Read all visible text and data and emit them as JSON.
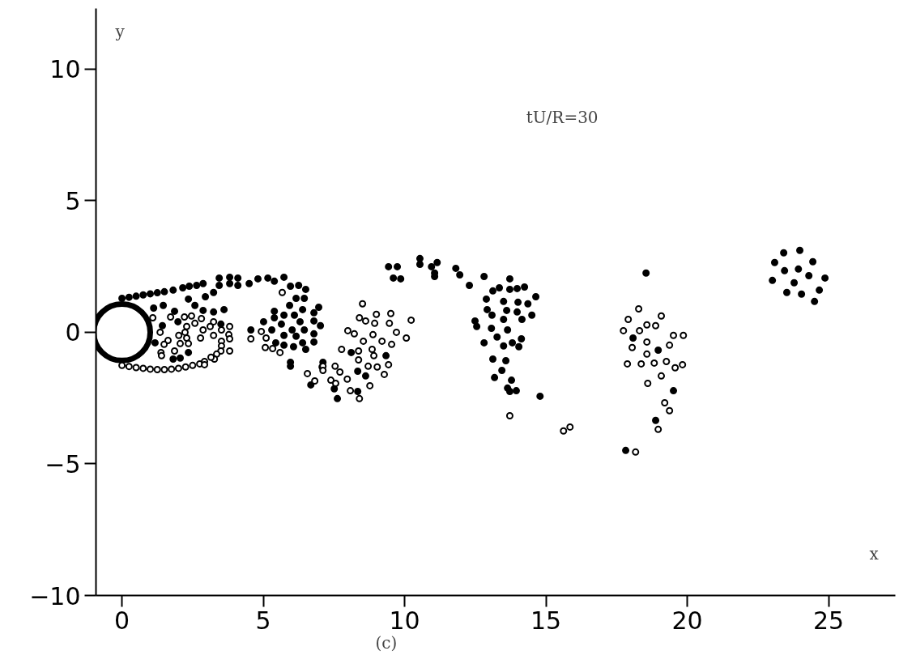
{
  "chart_data": {
    "type": "scatter",
    "xlabel": "x",
    "ylabel": "y",
    "annotations": [
      "tU/R=30",
      "(c)"
    ],
    "xlim": [
      -0.92,
      27.36
    ],
    "ylim": [
      -10,
      12.3
    ],
    "xticks": [
      0,
      5,
      10,
      15,
      20,
      25
    ],
    "yticks": [
      {
        "value": -10,
        "label": "−10"
      },
      {
        "value": -5,
        "label": "−5"
      },
      0,
      5,
      10
    ],
    "grid": false,
    "marker": "circle",
    "series": [
      {
        "color": "#000000",
        "x": [
          0.0,
          0.25,
          0.5,
          0.75,
          1.0,
          1.25,
          1.5,
          1.81,
          2.15,
          2.38,
          2.64,
          2.87,
          3.44,
          3.44,
          3.81,
          3.81,
          4.1,
          4.1,
          4.5,
          4.81,
          5.16,
          5.39,
          5.73,
          5.96,
          6.25,
          6.5,
          6.45,
          6.16,
          5.93,
          6.96,
          5.39,
          6.39,
          6.79,
          5.73,
          6.1,
          5.39,
          5.01,
          5.64,
          6.3,
          6.79,
          7.02,
          4.56,
          5.3,
          6.02,
          6.45,
          5.73,
          6.16,
          6.79,
          5.44,
          5.73,
          6.07,
          6.39,
          6.5,
          6.79,
          5.96,
          5.96,
          7.11,
          6.68,
          1.12,
          1.46,
          1.86,
          2.35,
          2.95,
          3.24,
          2.58,
          2.87,
          3.24,
          3.61,
          1.98,
          1.43,
          1.17,
          3.5,
          2.35,
          1.81,
          2.06,
          8.11,
          8.34,
          8.62,
          9.34,
          8.34,
          7.51,
          7.62,
          9.43,
          9.74,
          9.6,
          9.86,
          10.54,
          10.54,
          10.95,
          11.15,
          11.06,
          11.06,
          11.81,
          11.95,
          12.29,
          12.49,
          12.55,
          12.81,
          13.72,
          13.12,
          13.35,
          13.72,
          13.98,
          14.24,
          14.64,
          12.89,
          13.5,
          14.01,
          14.36,
          12.92,
          13.61,
          13.98,
          13.09,
          13.5,
          14.15,
          14.5,
          13.07,
          13.64,
          13.27,
          14.13,
          12.81,
          13.81,
          13.5,
          14.04,
          13.12,
          13.58,
          13.44,
          13.18,
          13.78,
          13.64,
          13.72,
          13.95,
          14.79,
          18.54,
          18.08,
          18.97,
          19.51,
          18.88,
          17.82,
          23.41,
          23.98,
          23.09,
          24.44,
          23.44,
          23.93,
          24.3,
          24.87,
          23.01,
          23.78,
          23.52,
          24.04,
          24.67,
          24.5
        ],
        "values": [
          1.29,
          1.33,
          1.37,
          1.42,
          1.46,
          1.5,
          1.54,
          1.6,
          1.69,
          1.75,
          1.78,
          1.85,
          2.06,
          1.78,
          2.09,
          1.85,
          2.06,
          1.78,
          1.85,
          2.03,
          2.06,
          1.94,
          2.09,
          1.75,
          1.78,
          1.63,
          1.29,
          1.29,
          1.02,
          0.95,
          0.8,
          0.86,
          0.74,
          0.65,
          0.65,
          0.55,
          0.4,
          0.31,
          0.4,
          0.43,
          0.25,
          0.09,
          0.09,
          0.09,
          0.09,
          -0.12,
          -0.15,
          -0.06,
          -0.4,
          -0.49,
          -0.55,
          -0.4,
          -0.65,
          -0.37,
          -1.14,
          -1.29,
          -1.14,
          -2.0,
          0.92,
          1.02,
          0.8,
          1.26,
          1.35,
          1.51,
          1.02,
          0.83,
          0.77,
          0.86,
          0.4,
          0.25,
          -0.4,
          0.31,
          -0.77,
          -1.02,
          -0.98,
          -0.77,
          -1.48,
          -1.66,
          -0.89,
          -2.25,
          -2.15,
          -2.52,
          2.49,
          2.49,
          2.06,
          2.03,
          2.8,
          2.58,
          2.49,
          2.65,
          2.25,
          2.12,
          2.43,
          2.18,
          1.78,
          0.43,
          0.22,
          2.12,
          2.03,
          1.57,
          1.69,
          1.63,
          1.66,
          1.72,
          1.35,
          1.26,
          1.17,
          1.14,
          1.08,
          0.86,
          0.83,
          0.77,
          0.65,
          0.49,
          0.49,
          0.65,
          0.15,
          0.09,
          -0.18,
          -0.25,
          -0.4,
          -0.4,
          -0.52,
          -0.55,
          -1.02,
          -1.08,
          -1.45,
          -1.72,
          -1.82,
          -2.12,
          -2.25,
          -2.22,
          -2.43,
          2.25,
          -0.22,
          -0.68,
          -2.22,
          -3.35,
          -4.49,
          3.02,
          3.11,
          2.65,
          2.68,
          2.34,
          2.4,
          2.15,
          2.06,
          1.97,
          1.88,
          1.51,
          1.45,
          1.6,
          1.17
        ]
      },
      {
        "color": "#000000",
        "x": [
          0.0,
          0.25,
          0.5,
          0.75,
          1.0,
          1.25,
          1.5,
          1.75,
          2.0,
          2.25,
          2.5,
          2.75,
          1.09,
          1.72,
          2.21,
          2.46,
          2.81,
          3.24,
          2.58,
          3.12,
          3.52,
          3.81,
          2.29,
          1.35,
          2.87,
          2.23,
          2.01,
          2.29,
          2.78,
          3.24,
          3.78,
          3.81,
          3.52,
          1.63,
          1.49,
          2.06,
          2.35,
          1.86,
          1.38,
          1.4,
          3.52,
          3.5,
          3.81,
          3.35,
          3.27,
          3.15,
          2.92,
          2.92,
          5.67,
          4.56,
          4.93,
          5.1,
          5.07,
          5.33,
          5.59,
          6.56,
          6.82,
          7.08,
          7.11,
          7.11,
          8.51,
          8.4,
          8.62,
          9.0,
          8.94,
          9.51,
          9.46,
          10.23,
          7.99,
          8.22,
          8.54,
          8.88,
          9.2,
          9.71,
          10.06,
          9.54,
          7.77,
          8.37,
          8.85,
          8.91,
          8.37,
          8.71,
          9.03,
          9.43,
          9.28,
          7.71,
          7.97,
          7.56,
          7.39,
          8.08,
          8.77,
          8.4,
          7.54,
          13.72,
          15.85,
          15.62,
          18.28,
          17.91,
          19.08,
          18.57,
          18.88,
          17.74,
          18.31,
          19.51,
          19.86,
          18.57,
          18.05,
          19.37,
          18.57,
          17.88,
          18.37,
          18.83,
          19.26,
          19.57,
          19.83,
          19.08,
          18.6,
          19.2,
          19.37,
          18.97,
          18.17
        ],
        "values": [
          -1.26,
          -1.3,
          -1.34,
          -1.37,
          -1.4,
          -1.42,
          -1.42,
          -1.4,
          -1.37,
          -1.32,
          -1.26,
          -1.2,
          0.55,
          0.58,
          0.58,
          0.62,
          0.52,
          0.4,
          0.34,
          0.22,
          0.09,
          0.22,
          0.22,
          0.0,
          0.09,
          0.0,
          -0.12,
          -0.22,
          -0.22,
          -0.12,
          -0.09,
          -0.25,
          -0.34,
          -0.31,
          -0.46,
          -0.43,
          -0.43,
          -0.71,
          -0.77,
          -0.89,
          -0.52,
          -0.71,
          -0.71,
          -0.83,
          -1.02,
          -0.95,
          -1.11,
          -1.23,
          1.51,
          -0.25,
          0.03,
          -0.22,
          -0.58,
          -0.62,
          -0.77,
          -1.57,
          -1.85,
          -1.32,
          -1.29,
          -1.45,
          1.08,
          0.55,
          0.43,
          0.68,
          0.34,
          0.71,
          0.34,
          0.46,
          0.06,
          -0.06,
          -0.34,
          -0.09,
          -0.34,
          0.0,
          -0.22,
          -0.46,
          -0.65,
          -0.71,
          -0.65,
          -0.89,
          -1.05,
          -1.29,
          -1.32,
          -1.23,
          -1.6,
          -1.51,
          -1.78,
          -1.94,
          -1.82,
          -2.22,
          -2.03,
          -2.52,
          -1.29,
          -3.17,
          -3.6,
          -3.75,
          0.89,
          0.49,
          0.62,
          0.28,
          0.25,
          0.06,
          0.06,
          -0.12,
          -0.12,
          -0.37,
          -0.58,
          -0.49,
          -0.83,
          -1.2,
          -1.2,
          -1.17,
          -1.11,
          -1.35,
          -1.23,
          -1.66,
          -1.94,
          -2.68,
          -2.98,
          -3.69,
          -4.55
        ]
      }
    ]
  }
}
